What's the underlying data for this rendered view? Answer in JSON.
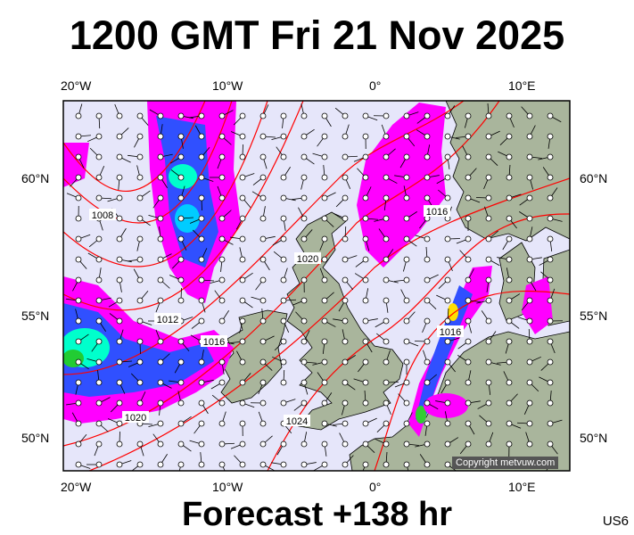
{
  "title": "1200 GMT Fri 21 Nov 2025",
  "footer": "Forecast +138 hr",
  "model_tag": "US6",
  "copyright": "Copyright metvuw.com",
  "lon_labels": [
    "20°W",
    "10°W",
    "0°",
    "10°E"
  ],
  "lat_labels": [
    "60°N",
    "55°N",
    "50°N"
  ],
  "isobar_labels": [
    "1008",
    "1012",
    "1016",
    "1016",
    "1016",
    "1020",
    "1020",
    "1024"
  ],
  "colors": {
    "sea": "#e6e6fa",
    "land": "#a9b59c",
    "isobar": "#ff0000",
    "precip_light": "#ff00ff",
    "precip_mid": "#3050ff",
    "precip_heavy": "#00ffcc"
  }
}
